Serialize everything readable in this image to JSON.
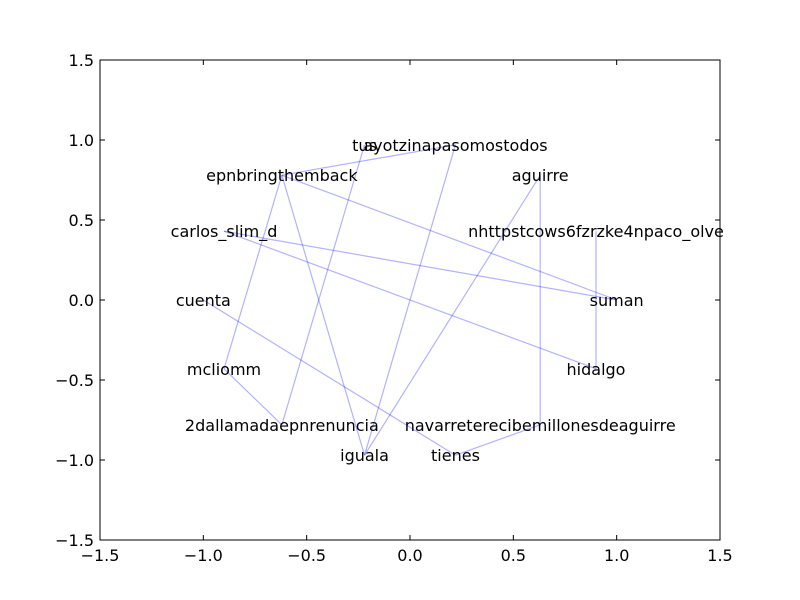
{
  "chart_data": {
    "type": "network",
    "title": "",
    "xlabel": "",
    "ylabel": "",
    "xlim": [
      -1.5,
      1.5
    ],
    "ylim": [
      -1.5,
      1.5
    ],
    "x_ticks": [
      -1.5,
      -1.0,
      -0.5,
      0.0,
      0.5,
      1.0,
      1.5
    ],
    "y_ticks": [
      -1.5,
      -1.0,
      -0.5,
      0.0,
      0.5,
      1.0,
      1.5
    ],
    "x_tick_labels": [
      "−1.5",
      "−1.0",
      "−0.5",
      "0.0",
      "0.5",
      "1.0",
      "1.5"
    ],
    "y_tick_labels": [
      "−1.5",
      "−1.0",
      "−0.5",
      "0.0",
      "0.5",
      "1.0",
      "1.5"
    ],
    "grid": false,
    "edge_color": "#0000ff",
    "nodes": [
      {
        "id": "tus",
        "label": "tus",
        "x": -0.22,
        "y": 0.97
      },
      {
        "id": "ayotzinapasomostodos",
        "label": "ayotzinapasomostodos",
        "x": 0.22,
        "y": 0.97
      },
      {
        "id": "epnbringthemback",
        "label": "epnbringthemback",
        "x": -0.62,
        "y": 0.78
      },
      {
        "id": "aguirre",
        "label": "aguirre",
        "x": 0.63,
        "y": 0.78
      },
      {
        "id": "carlos_slim_d",
        "label": "carlos_slim_d",
        "x": -0.9,
        "y": 0.43
      },
      {
        "id": "nhttpstcows6fzrzke4npaco_olve",
        "label": "nhttpstcows6fzrzke4npaco_olve",
        "x": 0.9,
        "y": 0.43
      },
      {
        "id": "cuenta",
        "label": "cuenta",
        "x": -1.0,
        "y": 0.0
      },
      {
        "id": "suman",
        "label": "suman",
        "x": 1.0,
        "y": 0.0
      },
      {
        "id": "mcliomm",
        "label": "mcliomm",
        "x": -0.9,
        "y": -0.43
      },
      {
        "id": "hidalgo",
        "label": "hidalgo",
        "x": 0.9,
        "y": -0.43
      },
      {
        "id": "2dallamadaepnrenuncia",
        "label": "2dallamadaepnrenuncia",
        "x": -0.62,
        "y": -0.78
      },
      {
        "id": "navarreterecibemillonesdeaguirre",
        "label": "navarreterecibemillonesdeaguirre",
        "x": 0.63,
        "y": -0.78
      },
      {
        "id": "iguala",
        "label": "iguala",
        "x": -0.22,
        "y": -0.97
      },
      {
        "id": "tienes",
        "label": "tienes",
        "x": 0.22,
        "y": -0.97
      }
    ],
    "edges": [
      [
        "epnbringthemback",
        "ayotzinapasomostodos"
      ],
      [
        "epnbringthemback",
        "mcliomm"
      ],
      [
        "epnbringthemback",
        "iguala"
      ],
      [
        "epnbringthemback",
        "suman"
      ],
      [
        "tus",
        "2dallamadaepnrenuncia"
      ],
      [
        "ayotzinapasomostodos",
        "iguala"
      ],
      [
        "aguirre",
        "navarreterecibemillonesdeaguirre"
      ],
      [
        "aguirre",
        "iguala"
      ],
      [
        "carlos_slim_d",
        "suman"
      ],
      [
        "carlos_slim_d",
        "hidalgo"
      ],
      [
        "nhttpstcows6fzrzke4npaco_olve",
        "hidalgo"
      ],
      [
        "cuenta",
        "tienes"
      ],
      [
        "mcliomm",
        "2dallamadaepnrenuncia"
      ],
      [
        "navarreterecibemillonesdeaguirre",
        "tienes"
      ]
    ]
  }
}
